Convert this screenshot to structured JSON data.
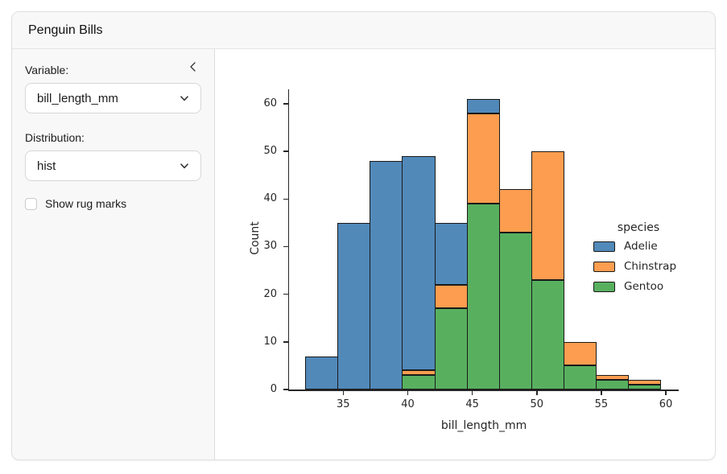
{
  "header": {
    "title": "Penguin Bills"
  },
  "sidebar": {
    "variable_label": "Variable:",
    "variable_value": "bill_length_mm",
    "distribution_label": "Distribution:",
    "distribution_value": "hist",
    "rug_label": "Show rug marks",
    "rug_checked": false
  },
  "chart_data": {
    "type": "bar",
    "subtype": "stacked-histogram",
    "xlabel": "bill_length_mm",
    "ylabel": "Count",
    "xlim": [
      30.8,
      61.0
    ],
    "ylim": [
      0,
      63
    ],
    "xticks": [
      35,
      40,
      45,
      50,
      55,
      60
    ],
    "yticks": [
      0,
      10,
      20,
      30,
      40,
      50,
      60
    ],
    "grid": false,
    "bin_edges": [
      32.1,
      34.6,
      37.1,
      39.6,
      42.1,
      44.6,
      47.1,
      49.6,
      52.1,
      54.6,
      57.1,
      59.6
    ],
    "stack_order_bottom_to_top": [
      "Gentoo",
      "Chinstrap",
      "Adelie"
    ],
    "series": [
      {
        "name": "Adelie",
        "color": "#5189b9",
        "values": [
          7,
          35,
          48,
          45,
          13,
          3,
          0,
          0,
          0,
          0,
          0
        ]
      },
      {
        "name": "Chinstrap",
        "color": "#fc9d4f",
        "values": [
          0,
          0,
          0,
          1,
          5,
          19,
          9,
          27,
          5,
          1,
          1
        ]
      },
      {
        "name": "Gentoo",
        "color": "#58b05f",
        "values": [
          0,
          0,
          0,
          3,
          17,
          39,
          33,
          23,
          5,
          2,
          1
        ]
      }
    ],
    "edge_color": "#1a1a1a",
    "legend": {
      "title": "species",
      "entries": [
        "Adelie",
        "Chinstrap",
        "Gentoo"
      ],
      "position": "right"
    }
  }
}
